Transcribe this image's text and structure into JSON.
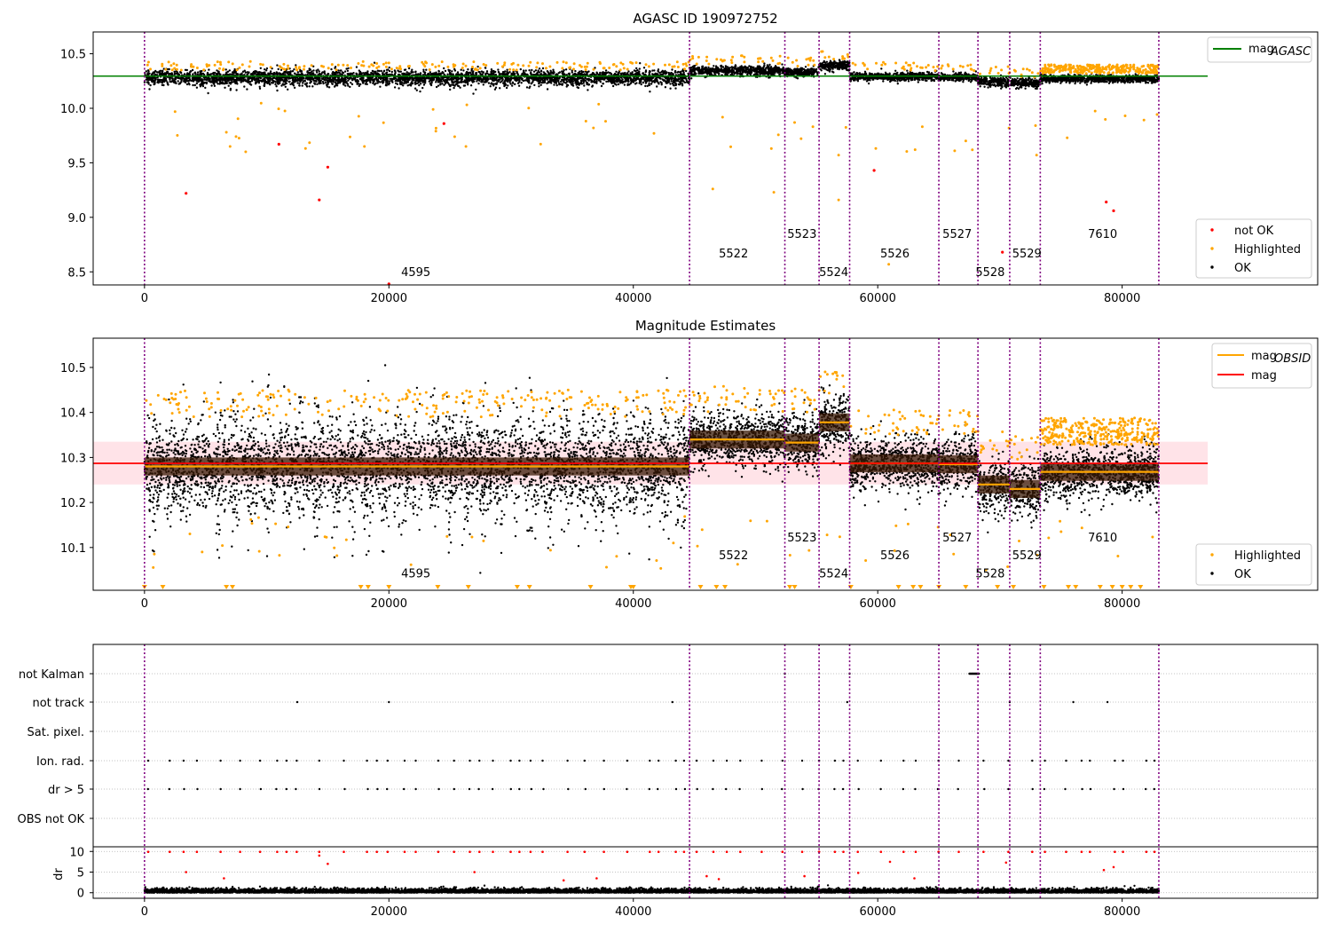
{
  "chart_data": [
    {
      "type": "scatter",
      "title": "AGASC ID 190972752",
      "xlim": [
        -4200,
        96000
      ],
      "ylim": [
        8.38,
        10.7
      ],
      "xticks": [
        0,
        20000,
        40000,
        60000,
        80000
      ],
      "xtick_labels": [
        "0",
        "20000",
        "40000",
        "60000",
        "80000"
      ],
      "yticks": [
        8.5,
        9.0,
        9.5,
        10.0,
        10.5
      ],
      "ytick_labels": [
        "8.5",
        "9.0",
        "9.5",
        "10.0",
        "10.5"
      ],
      "legend_upper": [
        {
          "name": "mag",
          "sub": "AGASC",
          "color": "#008000",
          "kind": "line"
        }
      ],
      "legend_lower": [
        {
          "name": "not OK",
          "color": "#ff0000",
          "kind": "dot"
        },
        {
          "name": "Highlighted",
          "color": "#ffa500",
          "kind": "dot"
        },
        {
          "name": "OK",
          "color": "#000000",
          "kind": "dot"
        }
      ],
      "mag_agasc": 10.295,
      "band_x_end": 87000,
      "observations": [
        {
          "x0": 0,
          "x1": 44600,
          "label": "4595",
          "mid": 10.285,
          "spread": 0.045,
          "label_y": 8.43,
          "label_x": 21000
        },
        {
          "x0": 44600,
          "x1": 52400,
          "label": "5522",
          "mid": 10.345,
          "spread": 0.04,
          "label_y": 8.6,
          "label_x": 47000
        },
        {
          "x0": 52400,
          "x1": 55200,
          "label": "5523",
          "mid": 10.33,
          "spread": 0.035,
          "label_y": 8.78,
          "label_x": 52600
        },
        {
          "x0": 55200,
          "x1": 57700,
          "label": "5524",
          "mid": 10.39,
          "spread": 0.04,
          "label_y": 8.43,
          "label_x": 55200
        },
        {
          "x0": 57700,
          "x1": 65000,
          "label": "5526",
          "mid": 10.29,
          "spread": 0.035,
          "label_y": 8.6,
          "label_x": 60200
        },
        {
          "x0": 65000,
          "x1": 68200,
          "label": "5527",
          "mid": 10.285,
          "spread": 0.03,
          "label_y": 8.78,
          "label_x": 65300
        },
        {
          "x0": 68200,
          "x1": 70800,
          "label": "5528",
          "mid": 10.245,
          "spread": 0.04,
          "label_y": 8.43,
          "label_x": 68000
        },
        {
          "x0": 70800,
          "x1": 73300,
          "label": "5529",
          "mid": 10.23,
          "spread": 0.035,
          "label_y": 8.6,
          "label_x": 71000
        },
        {
          "x0": 73300,
          "x1": 83000,
          "label": "7610",
          "mid": 10.27,
          "spread": 0.03,
          "label_y": 8.78,
          "label_x": 77200
        }
      ],
      "boundaries": [
        0,
        44600,
        52400,
        55200,
        57700,
        65000,
        68200,
        70800,
        73300,
        83000
      ]
    },
    {
      "type": "scatter",
      "title": "Magnitude Estimates",
      "xlim": [
        -4200,
        96000
      ],
      "ylim": [
        10.005,
        10.565
      ],
      "xticks": [
        0,
        20000,
        40000,
        60000,
        80000
      ],
      "xtick_labels": [
        "0",
        "20000",
        "40000",
        "60000",
        "80000"
      ],
      "yticks": [
        10.1,
        10.2,
        10.3,
        10.4,
        10.5
      ],
      "ytick_labels": [
        "10.1",
        "10.2",
        "10.3",
        "10.4",
        "10.5"
      ],
      "legend_upper": [
        {
          "name": "mag",
          "sub": "OBSID",
          "color": "#ffa500",
          "kind": "line"
        },
        {
          "name": "mag",
          "sub": "",
          "color": "#ff0000",
          "kind": "line"
        }
      ],
      "legend_lower": [
        {
          "name": "Highlighted",
          "color": "#ffa500",
          "kind": "dot"
        },
        {
          "name": "OK",
          "color": "#000000",
          "kind": "dot"
        }
      ],
      "mag": 10.287,
      "mag_band": [
        10.24,
        10.335
      ],
      "obs_mags": [
        10.28,
        10.34,
        10.333,
        10.378,
        10.287,
        10.285,
        10.24,
        10.23,
        10.268
      ],
      "obs_label_y": [
        10.03,
        10.07,
        10.11,
        10.03,
        10.07,
        10.11,
        10.03,
        10.07,
        10.11
      ],
      "obs_label_x": [
        21000,
        47000,
        52600,
        55200,
        60200,
        65300,
        68000,
        71000,
        77200
      ]
    },
    {
      "type": "scatter",
      "title": "",
      "xlim": [
        -4200,
        96000
      ],
      "xticks": [
        0,
        20000,
        40000,
        60000,
        80000
      ],
      "xtick_labels": [
        "0",
        "20000",
        "40000",
        "60000",
        "80000"
      ],
      "flag_labels": [
        "not Kalman",
        "not track",
        "Sat. pixel.",
        "Ion. rad.",
        "dr > 5",
        "OBS not OK"
      ],
      "dr_yticks": [
        0,
        5,
        10
      ],
      "dr_ytick_labels": [
        "0",
        "5",
        "10"
      ],
      "dr_ylabel": "dr",
      "dr_ylim": [
        -0.7,
        10.7
      ]
    }
  ],
  "colors": {
    "ok": "#000000",
    "highlighted": "#ffa500",
    "not_ok": "#ff0000",
    "agasc_line": "#008000",
    "boundary": "#800080",
    "band": "#ffc0cb",
    "grid": "#b0b0b0"
  }
}
